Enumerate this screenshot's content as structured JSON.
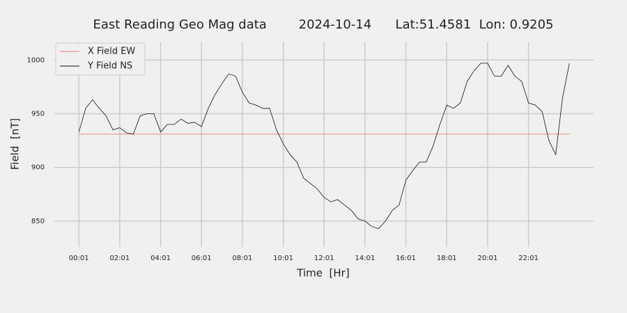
{
  "chart_data": {
    "type": "line",
    "title": "East Reading Geo Mag data        2024-10-14      Lat:51.4581  Lon: 0.9205",
    "x_label": "Time  [Hr]",
    "y_label": "Field  [nT]",
    "x": [
      1,
      21,
      41,
      61,
      81,
      101,
      121,
      141,
      161,
      181,
      201,
      221,
      241,
      261,
      281,
      301,
      321,
      341,
      361,
      381,
      401,
      421,
      441,
      461,
      481,
      501,
      521,
      541,
      561,
      581,
      601,
      621,
      641,
      661,
      681,
      701,
      721,
      741,
      761,
      781,
      801,
      821,
      841,
      861,
      881,
      901,
      921,
      941,
      961,
      981,
      1001,
      1021,
      1041,
      1061,
      1081,
      1101,
      1121,
      1141,
      1161,
      1181,
      1201,
      1221,
      1241,
      1261,
      1281,
      1301,
      1321,
      1341,
      1361,
      1381,
      1401,
      1421,
      1441
    ],
    "series": [
      {
        "name": "X Field EW",
        "color": "#f07a75",
        "values": [
          931,
          931,
          931,
          931,
          931,
          931,
          931,
          931,
          931,
          931,
          931,
          931,
          931,
          931,
          931,
          931,
          931,
          931,
          931,
          931,
          931,
          931,
          931,
          931,
          931,
          931,
          931,
          931,
          931,
          931,
          931,
          931,
          931,
          931,
          931,
          931,
          931,
          931,
          931,
          931,
          931,
          931,
          931,
          931,
          931,
          931,
          931,
          931,
          931,
          931,
          931,
          931,
          931,
          931,
          931,
          931,
          931,
          931,
          931,
          931,
          931,
          931,
          931,
          931,
          931,
          931,
          931,
          931,
          931,
          931,
          931,
          931,
          931
        ]
      },
      {
        "name": "Y Field NS",
        "color": "#111111",
        "values": [
          933,
          955,
          963,
          955,
          948,
          935,
          937,
          932,
          931,
          948,
          950,
          950,
          933,
          940,
          940,
          945,
          941,
          942,
          938,
          955,
          968,
          978,
          987,
          985,
          970,
          960,
          958,
          955,
          955,
          935,
          922,
          912,
          905,
          890,
          885,
          880,
          872,
          868,
          870,
          865,
          860,
          852,
          850,
          845,
          843,
          850,
          860,
          865,
          888,
          897,
          905,
          905,
          920,
          940,
          958,
          955,
          960,
          980,
          990,
          997,
          997,
          985,
          985,
          995,
          985,
          980,
          960,
          958,
          952,
          925,
          912,
          965,
          997
        ]
      }
    ],
    "xlim": [
      -71,
      1512
    ],
    "xticks": [
      {
        "value": 1,
        "label": "00:01"
      },
      {
        "value": 121,
        "label": "02:01"
      },
      {
        "value": 241,
        "label": "04:01"
      },
      {
        "value": 361,
        "label": "06:01"
      },
      {
        "value": 481,
        "label": "08:01"
      },
      {
        "value": 601,
        "label": "10:01"
      },
      {
        "value": 721,
        "label": "12:01"
      },
      {
        "value": 841,
        "label": "14:01"
      },
      {
        "value": 961,
        "label": "16:01"
      },
      {
        "value": 1081,
        "label": "18:01"
      },
      {
        "value": 1201,
        "label": "20:01"
      },
      {
        "value": 1321,
        "label": "22:01"
      }
    ],
    "ylim": [
      826,
      1017
    ],
    "yticks": [
      850,
      900,
      950,
      1000
    ],
    "grid": true,
    "legend": "upper left"
  }
}
